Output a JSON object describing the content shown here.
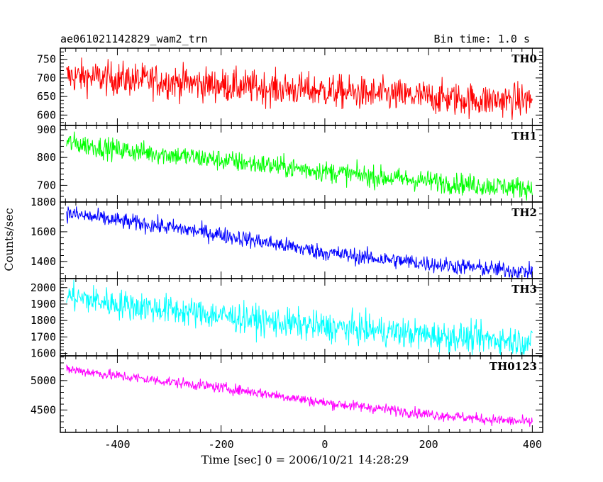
{
  "header": {
    "left_title": "ae061021142829_wam2_trn",
    "right_title": "Bin time: 1.0 s"
  },
  "xlabel": "Time [sec] 0 = 2006/10/21 14:28:29",
  "ylabel": "Counts/sec",
  "x_ticks": [
    -400,
    -200,
    0,
    200,
    400
  ],
  "chart_data": [
    {
      "type": "line",
      "name": "TH0",
      "color": "#ff0000",
      "xlim": [
        -510,
        420
      ],
      "ylim": [
        572,
        780
      ],
      "yticks": [
        600,
        650,
        700,
        750
      ],
      "x": [
        -500,
        -400,
        -300,
        -200,
        -100,
        0,
        100,
        200,
        300,
        400
      ],
      "values": [
        705,
        698,
        690,
        680,
        672,
        665,
        655,
        648,
        640,
        640
      ],
      "noise_amplitude": 45
    },
    {
      "type": "line",
      "name": "TH1",
      "color": "#00ff00",
      "xlim": [
        -510,
        420
      ],
      "ylim": [
        640,
        915
      ],
      "yticks": [
        700,
        800,
        900
      ],
      "x": [
        -500,
        -400,
        -300,
        -200,
        -100,
        0,
        100,
        200,
        300,
        400
      ],
      "values": [
        855,
        828,
        810,
        790,
        770,
        750,
        730,
        715,
        700,
        690
      ],
      "noise_amplitude": 38
    },
    {
      "type": "line",
      "name": "TH2",
      "color": "#0000ff",
      "xlim": [
        -510,
        420
      ],
      "ylim": [
        1285,
        1800
      ],
      "yticks": [
        1400,
        1600,
        1800
      ],
      "x": [
        -500,
        -400,
        -300,
        -200,
        -100,
        0,
        100,
        200,
        300,
        400
      ],
      "values": [
        1725,
        1675,
        1630,
        1580,
        1520,
        1460,
        1420,
        1385,
        1355,
        1330
      ],
      "noise_amplitude": 55
    },
    {
      "type": "line",
      "name": "TH3",
      "color": "#00ffff",
      "xlim": [
        -510,
        420
      ],
      "ylim": [
        1585,
        2055
      ],
      "yticks": [
        1600,
        1700,
        1800,
        1900,
        2000
      ],
      "x": [
        -500,
        -400,
        -300,
        -200,
        -100,
        0,
        100,
        200,
        300,
        400
      ],
      "values": [
        1950,
        1900,
        1865,
        1830,
        1790,
        1760,
        1740,
        1710,
        1690,
        1670
      ],
      "noise_amplitude": 90
    },
    {
      "type": "line",
      "name": "TH0123",
      "color": "#ff00ff",
      "xlim": [
        -510,
        420
      ],
      "ylim": [
        4120,
        5420
      ],
      "yticks": [
        4500,
        5000
      ],
      "x": [
        -500,
        -400,
        -300,
        -200,
        -100,
        0,
        100,
        200,
        300,
        400
      ],
      "values": [
        5200,
        5080,
        4980,
        4880,
        4760,
        4620,
        4530,
        4430,
        4350,
        4290
      ],
      "noise_amplitude": 90
    }
  ]
}
